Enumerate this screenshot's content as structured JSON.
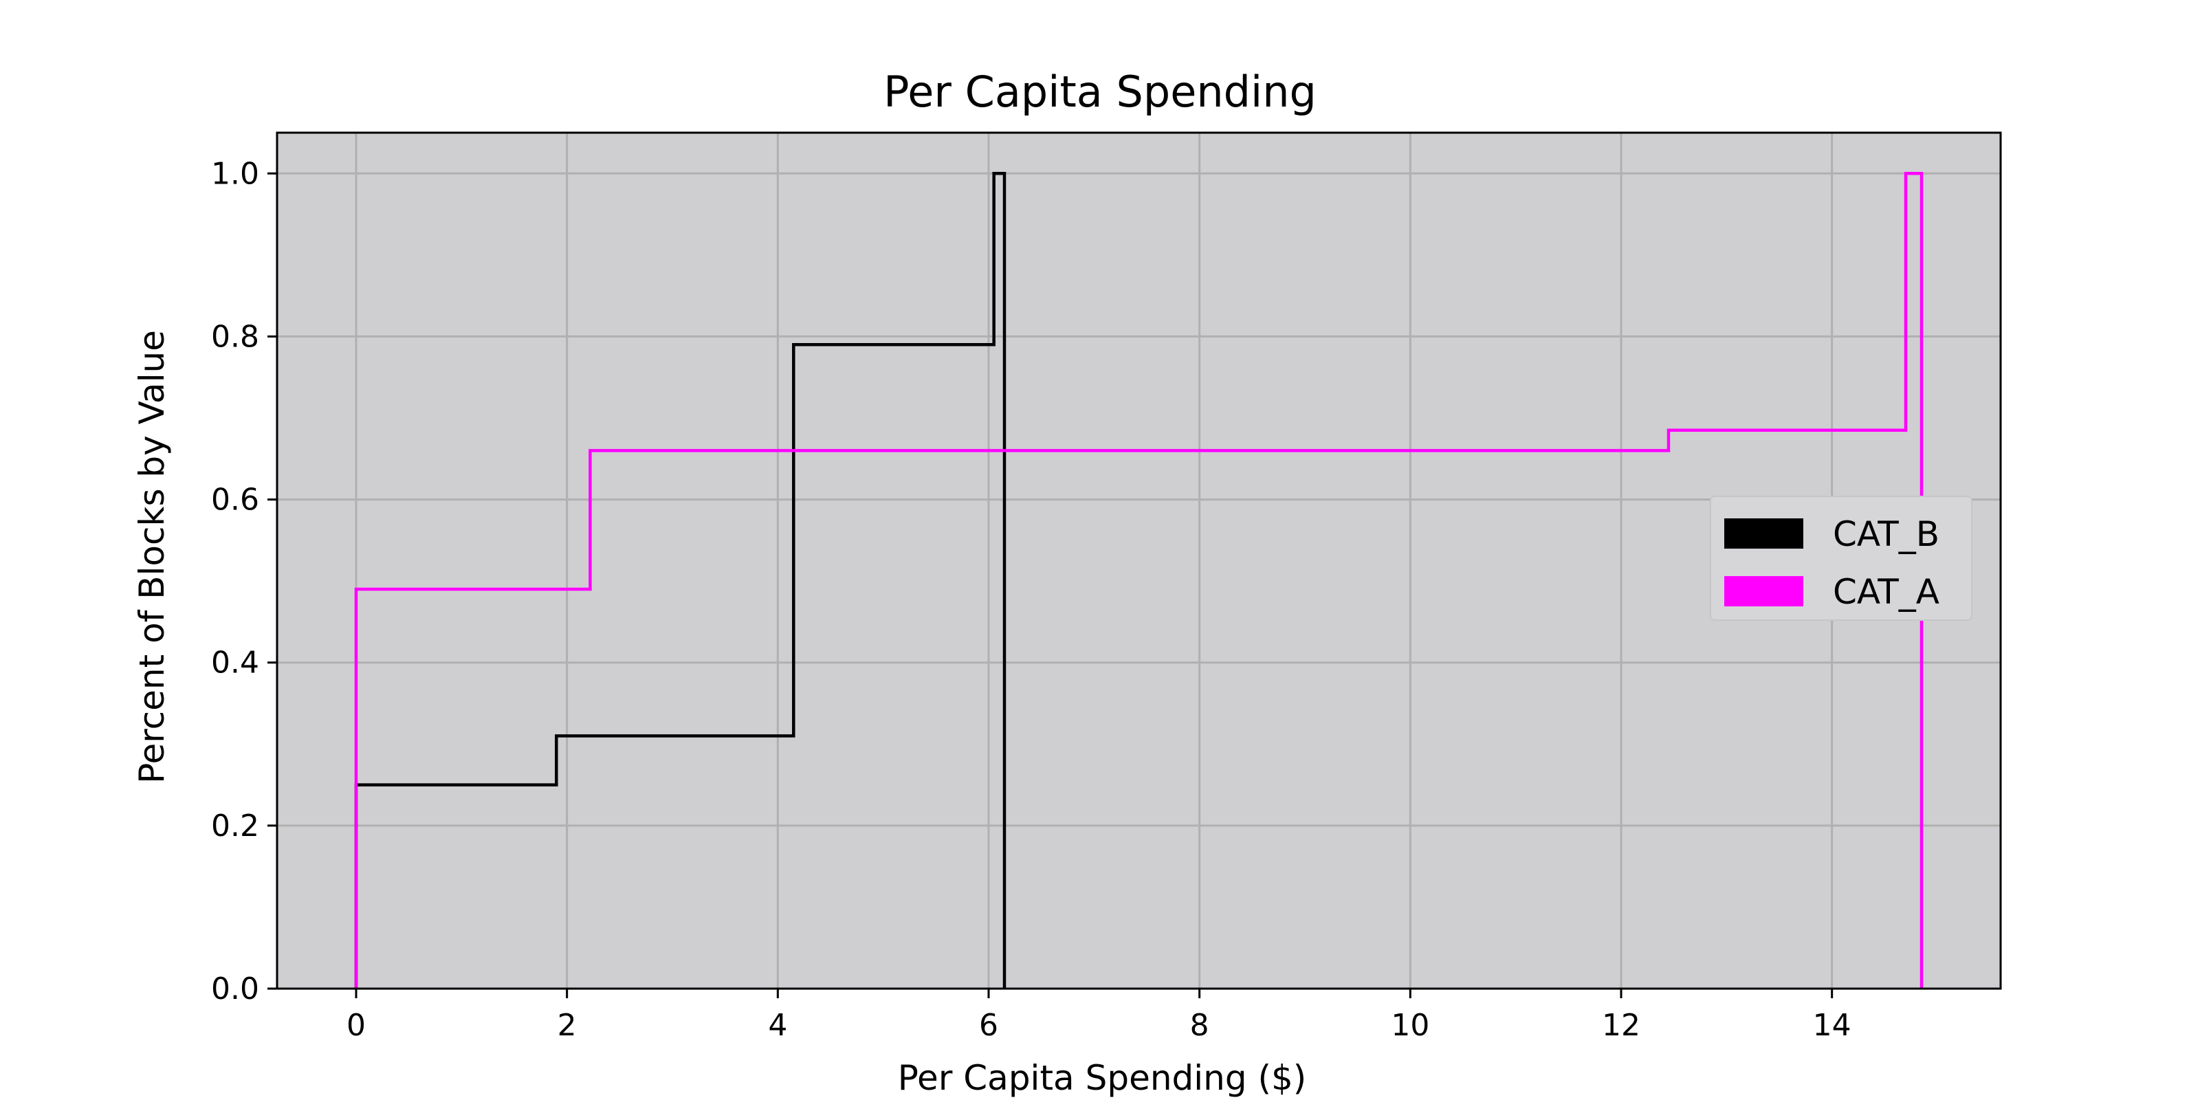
{
  "chart_data": {
    "type": "line",
    "title": "Per Capita Spending",
    "xlabel": "Per Capita Spending ($)",
    "ylabel": "Percent of Blocks by Value",
    "xlim": [
      -0.75,
      15.6
    ],
    "ylim": [
      0.0,
      1.05
    ],
    "xticks": [
      0,
      2,
      4,
      6,
      8,
      10,
      12,
      14
    ],
    "yticks": [
      0.0,
      0.2,
      0.4,
      0.6,
      0.8,
      1.0
    ],
    "xtick_labels": [
      "0",
      "2",
      "4",
      "6",
      "8",
      "10",
      "12",
      "14"
    ],
    "ytick_labels": [
      "0.0",
      "0.2",
      "0.4",
      "0.6",
      "0.8",
      "1.0"
    ],
    "grid": true,
    "background": "#cfcfd2",
    "legend_position": "center-right",
    "step": true,
    "series": [
      {
        "name": "CAT_B",
        "color": "#000000",
        "x": [
          0.0,
          0.0,
          1.9,
          1.9,
          4.15,
          4.15,
          6.05,
          6.05,
          6.15,
          6.15
        ],
        "y": [
          0.0,
          0.25,
          0.25,
          0.31,
          0.31,
          0.79,
          0.79,
          1.0,
          1.0,
          0.0
        ]
      },
      {
        "name": "CAT_A",
        "color": "#ff00ff",
        "x": [
          0.0,
          0.0,
          2.22,
          2.22,
          12.45,
          12.45,
          14.7,
          14.7,
          14.85,
          14.85
        ],
        "y": [
          0.0,
          0.49,
          0.49,
          0.66,
          0.66,
          0.685,
          0.685,
          1.0,
          1.0,
          0.0
        ]
      }
    ]
  }
}
